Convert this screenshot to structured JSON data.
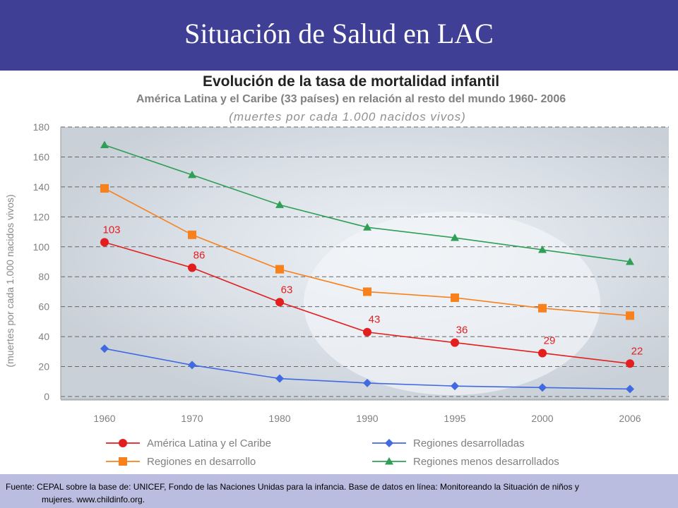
{
  "header": {
    "title": "Situación de Salud en LAC"
  },
  "chart_data": {
    "type": "line",
    "title": "Evolución de la tasa de mortalidad infantil",
    "subtitle": "América Latina y el Caribe (33 países) en relación al resto del mundo 1960- 2006",
    "subtitle2": "(muertes por cada 1.000 nacidos vivos)",
    "ylabel": "(muertes por cada 1.000 nacidos vivos)",
    "xlabel": "",
    "categories": [
      "1960",
      "1970",
      "1980",
      "1990",
      "1995",
      "2000",
      "2006"
    ],
    "ylim": [
      0,
      180
    ],
    "yticks": [
      0,
      20,
      40,
      60,
      80,
      100,
      120,
      140,
      160,
      180
    ],
    "grid": true,
    "legend_position": "bottom",
    "series": [
      {
        "name": "América Latina y el Caribe",
        "values": [
          103,
          86,
          63,
          43,
          36,
          29,
          22
        ],
        "color": "#e31e1e",
        "marker": "circle",
        "show_labels": true
      },
      {
        "name": "Regiones desarrolladas",
        "values": [
          32,
          21,
          12,
          9,
          7,
          6,
          5
        ],
        "color": "#4169e1",
        "marker": "diamond",
        "show_labels": false
      },
      {
        "name": "Regiones en desarrollo",
        "values": [
          139,
          108,
          85,
          70,
          66,
          59,
          54
        ],
        "color": "#f7821d",
        "marker": "square",
        "show_labels": false
      },
      {
        "name": "Regiones menos desarrollados",
        "values": [
          168,
          148,
          128,
          113,
          106,
          98,
          90
        ],
        "color": "#2e9f55",
        "marker": "triangle",
        "show_labels": false
      }
    ]
  },
  "footer": {
    "line1": "Fuente: CEPAL sobre la base de: UNICEF, Fondo de las Naciones Unidas para la infancia. Base de datos en línea: Monitoreando la Situación de niños y",
    "line2": "mujeres. www.childinfo.org."
  }
}
